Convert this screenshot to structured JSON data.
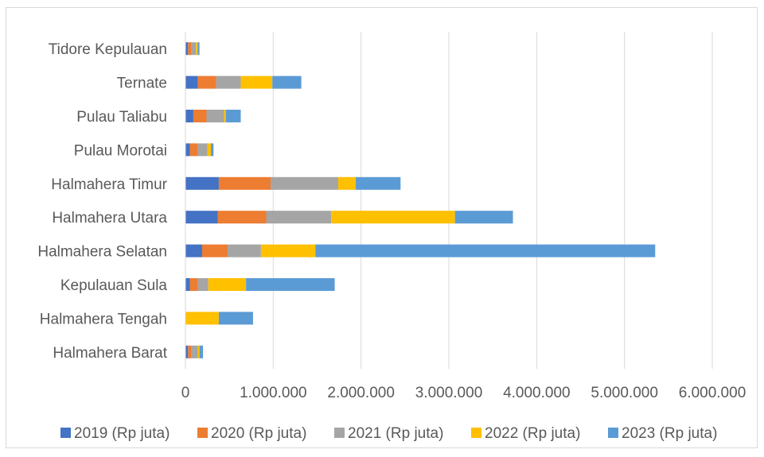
{
  "chart_data": {
    "type": "bar",
    "orientation": "horizontal",
    "stacked": true,
    "categories": [
      "Halmahera Barat",
      "Halmahera Tengah",
      "Kepulauan Sula",
      "Halmahera Selatan",
      "Halmahera Utara",
      "Halmahera Timur",
      "Pulau Morotai",
      "Pulau Taliabu",
      "Ternate",
      "Tidore Kepulauan"
    ],
    "series": [
      {
        "name": "2019 (Rp juta)",
        "color": "#4472C4",
        "values": [
          30000,
          0,
          50000,
          190000,
          370000,
          380000,
          50000,
          90000,
          140000,
          30000
        ]
      },
      {
        "name": "2020 (Rp juta)",
        "color": "#ED7D31",
        "values": [
          40000,
          0,
          90000,
          290000,
          550000,
          590000,
          90000,
          150000,
          210000,
          40000
        ]
      },
      {
        "name": "2021 (Rp juta)",
        "color": "#A5A5A5",
        "values": [
          70000,
          0,
          120000,
          380000,
          740000,
          770000,
          110000,
          200000,
          280000,
          50000
        ]
      },
      {
        "name": "2022 (Rp juta)",
        "color": "#FFC000",
        "values": [
          20000,
          380000,
          430000,
          620000,
          1410000,
          200000,
          40000,
          20000,
          360000,
          20000
        ]
      },
      {
        "name": "2023 (Rp juta)",
        "color": "#5B9BD5",
        "values": [
          40000,
          390000,
          1010000,
          3870000,
          660000,
          510000,
          30000,
          170000,
          330000,
          20000
        ]
      }
    ],
    "xlim": [
      0,
      6000000
    ],
    "xticks": [
      0,
      1000000,
      2000000,
      3000000,
      4000000,
      5000000,
      6000000
    ],
    "xtick_labels": [
      "0",
      "1.000.000",
      "2.000.000",
      "3.000.000",
      "4.000.000",
      "5.000.000",
      "6.000.000"
    ],
    "grid": true,
    "legend_position": "bottom"
  }
}
